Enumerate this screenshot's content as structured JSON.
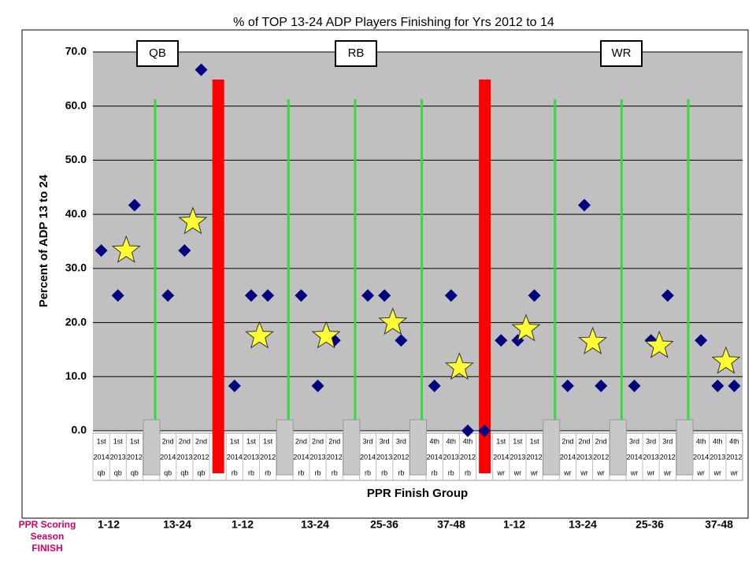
{
  "chart_data": {
    "type": "scatter",
    "title": "% of TOP 13-24 ADP Players Finishing for Yrs 2012 to 14",
    "ylabel": "Percent of ADP 13 to 24",
    "xlabel": "PPR Finish Group",
    "annotations": [
      "QB",
      "RB",
      "WR"
    ],
    "side_note": "PPR Scoring Season FINISH",
    "group_labels": [
      "1-12",
      "13-24",
      "1-12",
      "13-24",
      "25-36",
      "37-48",
      "1-12",
      "13-24",
      "25-36",
      "37-48"
    ],
    "categories": [
      [
        "1st",
        "2014",
        "qb"
      ],
      [
        "1st",
        "2013",
        "qb"
      ],
      [
        "1st",
        "2012",
        "qb"
      ],
      null,
      [
        "2nd",
        "2014",
        "qb"
      ],
      [
        "2nd",
        "2013",
        "qb"
      ],
      [
        "2nd",
        "2012",
        "qb"
      ],
      null,
      [
        "1st",
        "2014",
        "rb"
      ],
      [
        "1st",
        "2013",
        "rb"
      ],
      [
        "1st",
        "2012",
        "rb"
      ],
      null,
      [
        "2nd",
        "2014",
        "rb"
      ],
      [
        "2nd",
        "2013",
        "rb"
      ],
      [
        "2nd",
        "2012",
        "rb"
      ],
      null,
      [
        "3rd",
        "2014",
        "rb"
      ],
      [
        "3rd",
        "2013",
        "rb"
      ],
      [
        "3rd",
        "2012",
        "rb"
      ],
      null,
      [
        "4th",
        "2014",
        "rb"
      ],
      [
        "4th",
        "2013",
        "rb"
      ],
      [
        "4th",
        "2012",
        "rb"
      ],
      null,
      [
        "1st",
        "2014",
        "wr"
      ],
      [
        "1st",
        "2013",
        "wr"
      ],
      [
        "1st",
        "2012",
        "wr"
      ],
      null,
      [
        "2nd",
        "2014",
        "wr"
      ],
      [
        "2nd",
        "2013",
        "wr"
      ],
      [
        "2nd",
        "2012",
        "wr"
      ],
      null,
      [
        "3rd",
        "2014",
        "wr"
      ],
      [
        "3rd",
        "2013",
        "wr"
      ],
      [
        "3rd",
        "2012",
        "wr"
      ],
      null,
      [
        "4th",
        "2014",
        "wr"
      ],
      [
        "4th",
        "2013",
        "wr"
      ],
      [
        "4th",
        "2012",
        "wr"
      ]
    ],
    "series": [
      {
        "color": "#000080",
        "marker": "diamond",
        "values": [
          33.3,
          25,
          41.7,
          null,
          25,
          33.3,
          66.7,
          null,
          8.3,
          25,
          25,
          null,
          25,
          8.3,
          16.7,
          null,
          25,
          25,
          16.7,
          null,
          8.3,
          25,
          0,
          0,
          16.7,
          16.7,
          25,
          null,
          8.3,
          41.7,
          8.3,
          null,
          8.3,
          16.7,
          25,
          null,
          16.7,
          8.3,
          8.3
        ]
      },
      {
        "color": "#ffff33",
        "marker": "star",
        "values": [
          null,
          33.3,
          null,
          null,
          null,
          38.6,
          null,
          null,
          null,
          17.5,
          null,
          null,
          null,
          17.5,
          null,
          null,
          null,
          20,
          null,
          null,
          null,
          11.7,
          null,
          null,
          null,
          18.8,
          null,
          null,
          null,
          16.4,
          null,
          null,
          null,
          15.7,
          null,
          null,
          null,
          12.8,
          null
        ]
      }
    ],
    "ylim": [
      0,
      70
    ],
    "yticks": [
      {
        "value": 0,
        "label": "0.0"
      },
      {
        "value": 10,
        "label": "10.0"
      },
      {
        "value": 20,
        "label": "20.0"
      },
      {
        "value": 30,
        "label": "30.0"
      },
      {
        "value": 40,
        "label": "40.0"
      },
      {
        "value": 50,
        "label": "50.0"
      },
      {
        "value": 60,
        "label": "60.0"
      },
      {
        "value": 70,
        "label": "70.0"
      }
    ],
    "grid": true,
    "background": "#c0c0c0"
  }
}
